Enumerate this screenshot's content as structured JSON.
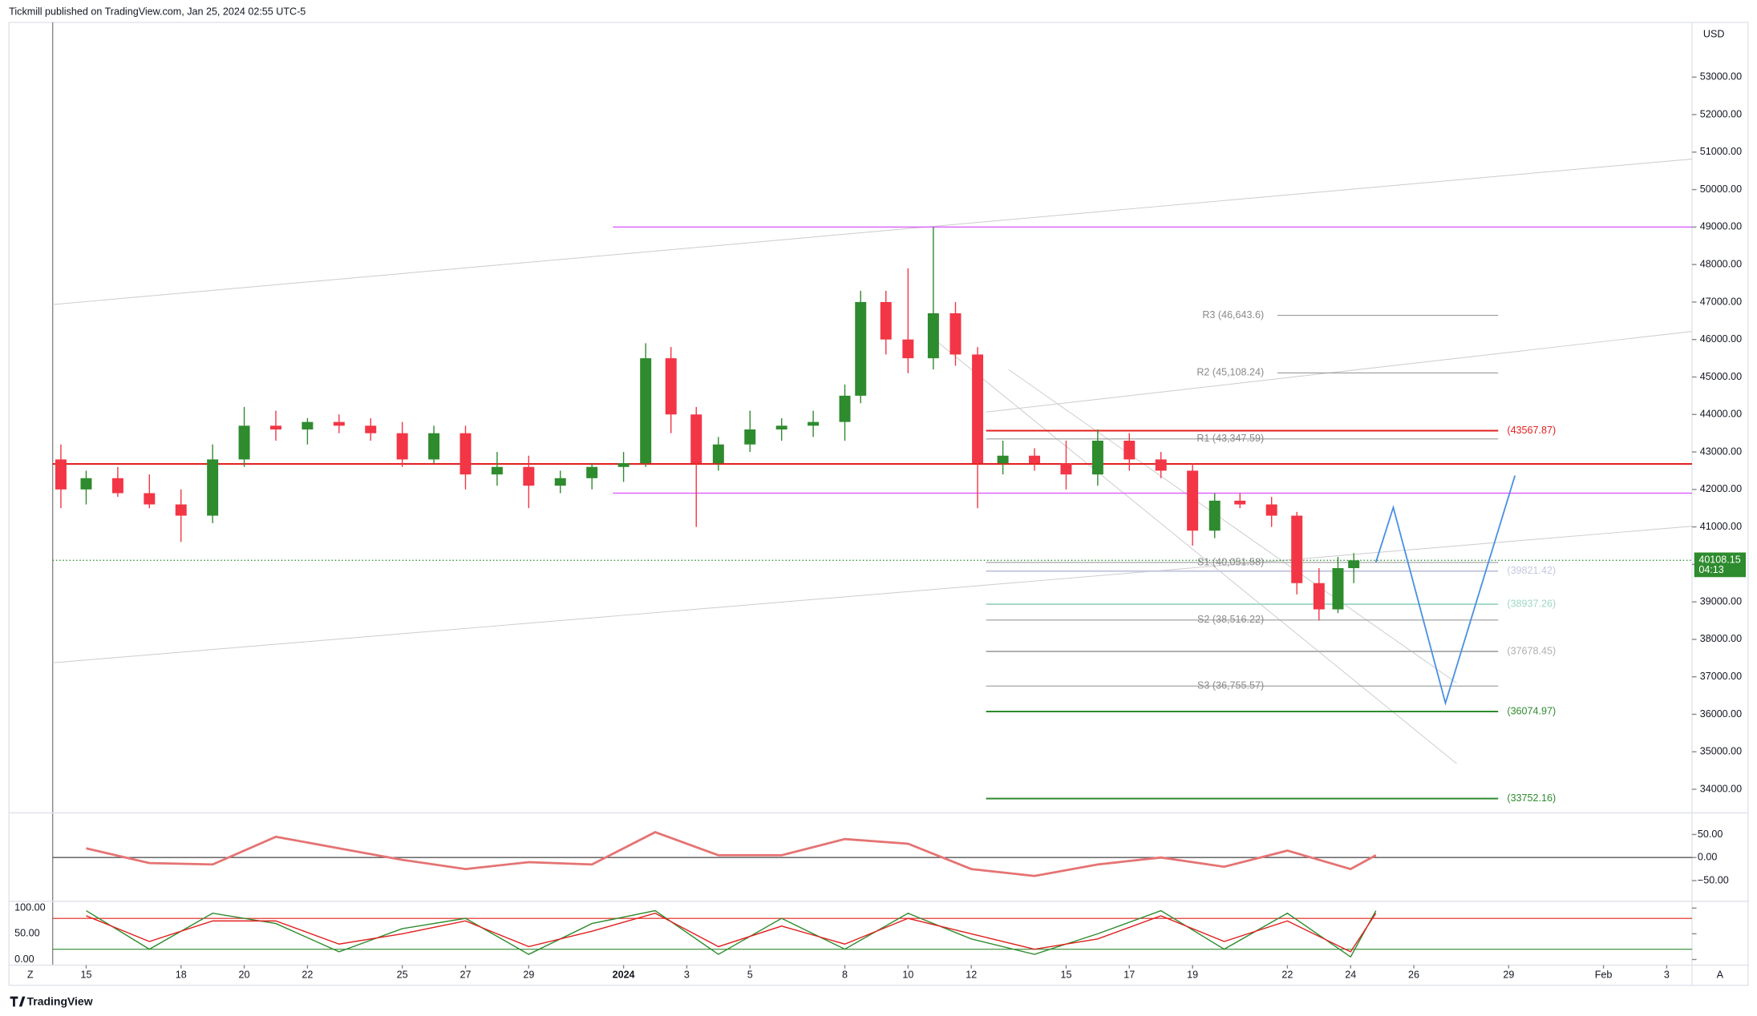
{
  "header": {
    "publisher": "Tickmill published on TradingView.com, Jan 25, 2024 02:55 UTC-5"
  },
  "footer": {
    "brand": "TradingView",
    "left_button": "Z",
    "right_button": "A"
  },
  "chart_data": {
    "type": "candlestick",
    "currency": "USD",
    "last_price": {
      "value": 40108.15,
      "label": "40108.15"
    },
    "countdown": "04:13",
    "up_color": "#2e8b2e",
    "down_color": "#f23645",
    "xlim": [
      -1.06,
      50.8
    ],
    "xticks": [
      {
        "value": 0,
        "label": "15"
      },
      {
        "value": 3,
        "label": "18"
      },
      {
        "value": 5,
        "label": "20"
      },
      {
        "value": 7,
        "label": "22"
      },
      {
        "value": 10,
        "label": "25"
      },
      {
        "value": 12,
        "label": "27"
      },
      {
        "value": 14,
        "label": "29"
      },
      {
        "value": 17,
        "label": "2024",
        "bold": true
      },
      {
        "value": 19,
        "label": "3"
      },
      {
        "value": 21,
        "label": "5"
      },
      {
        "value": 24,
        "label": "8"
      },
      {
        "value": 26,
        "label": "10"
      },
      {
        "value": 28,
        "label": "12"
      },
      {
        "value": 31,
        "label": "15"
      },
      {
        "value": 33,
        "label": "17"
      },
      {
        "value": 35,
        "label": "19"
      },
      {
        "value": 38,
        "label": "22"
      },
      {
        "value": 40,
        "label": "24"
      },
      {
        "value": 42,
        "label": "26"
      },
      {
        "value": 45,
        "label": "29"
      },
      {
        "value": 48,
        "label": "Feb"
      },
      {
        "value": 50,
        "label": "3"
      }
    ],
    "ylim": [
      33400,
      54460
    ],
    "yticks": [
      {
        "value": 34000,
        "label": "34000.00"
      },
      {
        "value": 35000,
        "label": "35000.00"
      },
      {
        "value": 36000,
        "label": "36000.00"
      },
      {
        "value": 37000,
        "label": "37000.00"
      },
      {
        "value": 38000,
        "label": "38000.00"
      },
      {
        "value": 39000,
        "label": "39000.00"
      },
      {
        "value": 40000,
        "label": "40000.00"
      },
      {
        "value": 41000,
        "label": "41000.00"
      },
      {
        "value": 42000,
        "label": "42000.00"
      },
      {
        "value": 43000,
        "label": "43000.00"
      },
      {
        "value": 44000,
        "label": "44000.00"
      },
      {
        "value": 45000,
        "label": "45000.00"
      },
      {
        "value": 46000,
        "label": "46000.00"
      },
      {
        "value": 47000,
        "label": "47000.00"
      },
      {
        "value": 48000,
        "label": "48000.00"
      },
      {
        "value": 49000,
        "label": "49000.00"
      },
      {
        "value": 50000,
        "label": "50000.00"
      },
      {
        "value": 51000,
        "label": "51000.00"
      },
      {
        "value": 52000,
        "label": "52000.00"
      },
      {
        "value": 53000,
        "label": "53000.00"
      }
    ],
    "x": [
      -0.8,
      0,
      1,
      2,
      3,
      4,
      5,
      6,
      7,
      8,
      9,
      10,
      11,
      12,
      13,
      14,
      15,
      16,
      17,
      17.7,
      18.5,
      19.3,
      20,
      21,
      22,
      23,
      24,
      24.5,
      25.3,
      26,
      26.8,
      27.5,
      28.2,
      29,
      30,
      31,
      32,
      33,
      34,
      35,
      35.7,
      36.5,
      37.5,
      38.3,
      39,
      39.6,
      40.1
    ],
    "open": [
      42800,
      42000,
      42300,
      41900,
      41600,
      41300,
      42800,
      43700,
      43600,
      43800,
      43700,
      43500,
      42800,
      43500,
      42400,
      42600,
      42100,
      42300,
      42600,
      42700,
      45500,
      44000,
      42700,
      43200,
      43600,
      43700,
      43800,
      44500,
      47000,
      46000,
      45500,
      46700,
      45600,
      42700,
      42900,
      42700,
      42400,
      43300,
      42800,
      42500,
      40900,
      41700,
      41600,
      41300,
      39500,
      38800,
      39900
    ],
    "high": [
      43200,
      42500,
      42600,
      42400,
      42000,
      43200,
      44200,
      44100,
      43900,
      44000,
      43900,
      43800,
      43700,
      43700,
      43000,
      42900,
      42500,
      42700,
      43000,
      45900,
      45800,
      44200,
      43400,
      44100,
      43900,
      44100,
      44800,
      47300,
      47300,
      47900,
      49000,
      47000,
      45800,
      43300,
      43100,
      43300,
      43600,
      43500,
      43000,
      42700,
      41900,
      41900,
      41800,
      41400,
      39900,
      40200,
      40300
    ],
    "low": [
      41500,
      41600,
      41800,
      41500,
      40600,
      41100,
      42600,
      43300,
      43200,
      43500,
      43300,
      42600,
      42700,
      42000,
      42100,
      41500,
      41900,
      42000,
      42200,
      42600,
      43500,
      41000,
      42500,
      43000,
      43300,
      43400,
      43300,
      44300,
      45600,
      45100,
      45200,
      45300,
      41500,
      42400,
      42500,
      42000,
      42100,
      42500,
      42300,
      40500,
      40700,
      41500,
      41000,
      39200,
      38500,
      38700,
      39500
    ],
    "close": [
      42000,
      42300,
      41900,
      41600,
      41300,
      42800,
      43700,
      43600,
      43800,
      43700,
      43500,
      42800,
      43500,
      42400,
      42600,
      42100,
      42300,
      42600,
      42700,
      45500,
      44000,
      42700,
      43200,
      43600,
      43700,
      43800,
      44500,
      47000,
      46000,
      45500,
      46700,
      45600,
      42700,
      42900,
      42700,
      42400,
      43300,
      42800,
      42500,
      40900,
      41700,
      41600,
      41300,
      39500,
      38800,
      39900,
      40108.15
    ],
    "lines": [
      {
        "value": 49000,
        "color": "#e066ff"
      },
      {
        "value": 42680,
        "color": "#e0201f"
      },
      {
        "value": 41900,
        "color": "#e066ff"
      }
    ],
    "pivots": [
      {
        "label": "R3 (46,643.6)",
        "value": 46643.6
      },
      {
        "label": "R2 (45,108.24)",
        "value": 45108.24
      },
      {
        "label": "R1 (43,347.59)",
        "value": 43347.59
      },
      {
        "label": "S1 (40,051.58)",
        "value": 40051.58
      },
      {
        "label": "S2 (38,516.22)",
        "value": 38516.22
      },
      {
        "label": "S3 (36,755.57)",
        "value": 36755.57
      }
    ],
    "targets": [
      {
        "label": "(43567.87)",
        "value": 43567.87,
        "color": "#e0201f"
      },
      {
        "label": "(39821.42)",
        "value": 39821.42,
        "color": "#c5c8e0"
      },
      {
        "label": "(38937.26)",
        "value": 38937.26,
        "color": "#9fd8c4"
      },
      {
        "label": "(37678.45)",
        "value": 37678.45,
        "color": "#b0b0b0"
      },
      {
        "label": "(36074.97)",
        "value": 36074.97,
        "color": "#2e8b2e"
      },
      {
        "label": "(33752.16)",
        "value": 33752.16,
        "color": "#2e8b2e"
      }
    ],
    "projection": {
      "color": "#4a90e2",
      "x": [
        40.8,
        41.35,
        43.0,
        45.2
      ],
      "y": [
        40060,
        41520,
        36300,
        42370
      ]
    },
    "oscillator": {
      "ylim": [
        -95,
        92
      ],
      "yticks": [
        {
          "value": 50,
          "label": "50.00"
        },
        {
          "value": 0,
          "label": "0.00"
        },
        {
          "value": -50,
          "label": "−50.00"
        }
      ],
      "color": "#e57373",
      "x": [
        0,
        2,
        4,
        6,
        8,
        10,
        12,
        14,
        16,
        18,
        20,
        22,
        24,
        26,
        28,
        30,
        32,
        34,
        36,
        38,
        40,
        40.8
      ],
      "values": [
        20,
        -12,
        -15,
        45,
        20,
        -5,
        -25,
        -10,
        -15,
        55,
        5,
        5,
        40,
        30,
        -25,
        -40,
        -15,
        0,
        -20,
        15,
        -25,
        5
      ]
    },
    "stochastic": {
      "ylim": [
        -11,
        111
      ],
      "yticks": [
        {
          "value": 100,
          "label": "100.00"
        },
        {
          "value": 50,
          "label": "50.00"
        },
        {
          "value": 0,
          "label": "0.00"
        }
      ],
      "bands": [
        80,
        20
      ],
      "x": [
        0,
        2,
        4,
        6,
        8,
        10,
        12,
        14,
        16,
        18,
        20,
        22,
        24,
        26,
        28,
        30,
        32,
        34,
        36,
        38,
        40,
        40.8
      ],
      "series": [
        {
          "color": "#2e8b2e",
          "values": [
            95,
            20,
            90,
            70,
            15,
            60,
            80,
            10,
            70,
            95,
            10,
            80,
            20,
            90,
            40,
            10,
            50,
            95,
            20,
            90,
            5,
            95
          ]
        },
        {
          "color": "#e0201f",
          "values": [
            85,
            35,
            75,
            75,
            30,
            50,
            75,
            25,
            55,
            90,
            25,
            65,
            30,
            80,
            50,
            20,
            40,
            85,
            35,
            75,
            15,
            90
          ]
        }
      ]
    }
  }
}
